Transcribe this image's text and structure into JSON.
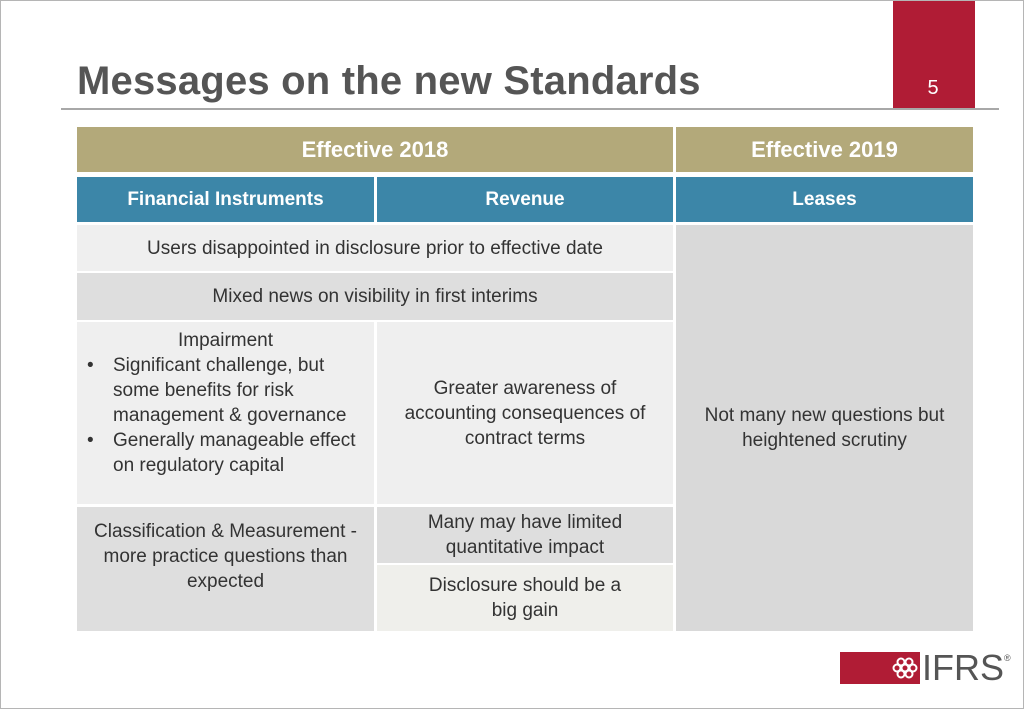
{
  "slide": {
    "title": "Messages on the new Standards",
    "page_number": "5"
  },
  "table": {
    "header_groups": [
      {
        "label": "Effective 2018"
      },
      {
        "label": "Effective 2019"
      }
    ],
    "columns": [
      {
        "label": "Financial Instruments"
      },
      {
        "label": "Revenue"
      },
      {
        "label": "Leases"
      }
    ],
    "rows": {
      "disclosure_prior": "Users disappointed in disclosure prior to effective date",
      "mixed_news": "Mixed news on visibility in first interims",
      "impairment": {
        "heading": "Impairment",
        "bullets": [
          "Significant challenge, but some benefits for risk management & governance",
          "Generally manageable effect on regulatory capital"
        ]
      },
      "greater_awareness": "Greater awareness of accounting consequences of contract terms",
      "classification": "Classification & Measurement - more practice questions than expected",
      "limited_impact": "Many may have limited quantitative impact",
      "disclosure_gain": "Disclosure should be a big gain",
      "leases_note": "Not many new questions but heightened scrutiny"
    }
  },
  "logo": {
    "text": "IFRS",
    "registered": "®",
    "icon": "ifrs-logo-icon",
    "color": "#b01c35"
  },
  "colors": {
    "accent_red": "#b01c35",
    "header_gold": "#b3a97a",
    "header_blue": "#3c86a8"
  }
}
